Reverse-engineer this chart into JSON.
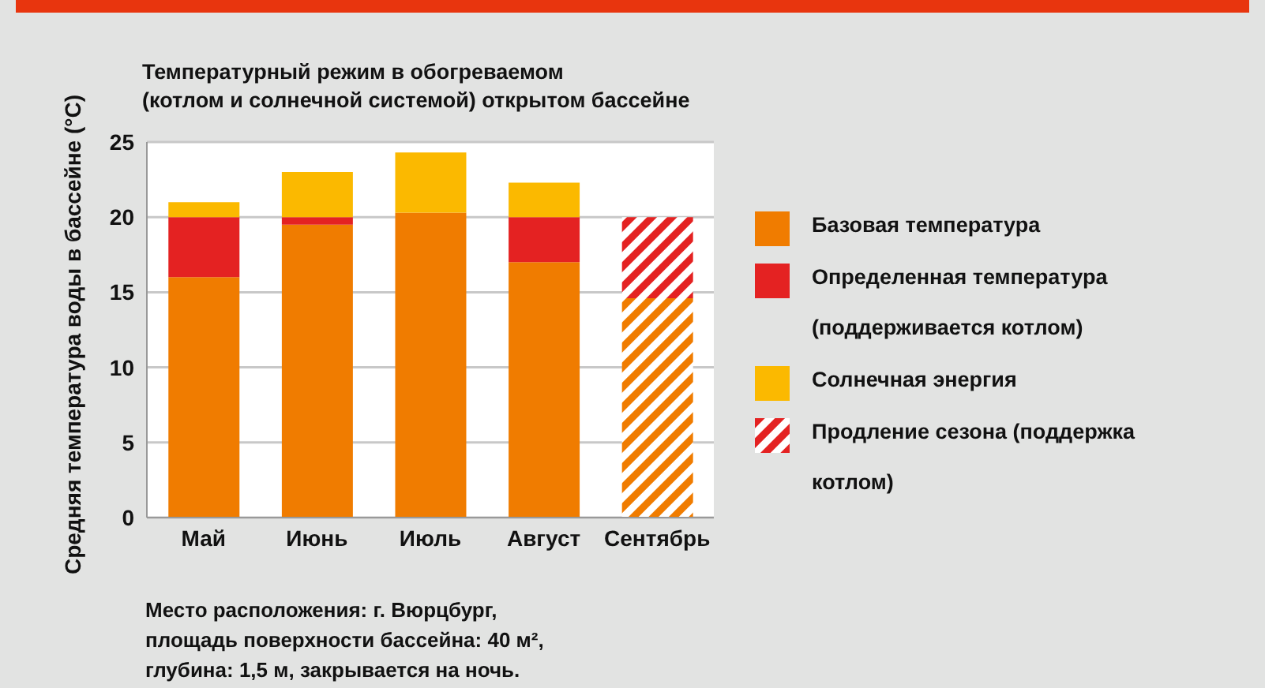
{
  "chart_data": {
    "type": "bar",
    "title": "Температурный режим в обогреваемом\n(котлом и солнечной системой) открытом бассейне",
    "ylabel": "Средняя температура воды в бассейне (°C)",
    "categories": [
      "Май",
      "Июнь",
      "Июль",
      "Август",
      "Сентябрь"
    ],
    "stacked": true,
    "ylim": [
      0,
      25
    ],
    "yticks": [
      0,
      5,
      10,
      15,
      20,
      25
    ],
    "grid": "y",
    "legend": "right",
    "series": [
      {
        "name": "Базовая температура",
        "color": "#f07c00",
        "values": [
          16,
          19.5,
          20.3,
          17,
          null
        ]
      },
      {
        "name": "Определенная температура (поддерживается котлом)",
        "color": "#e42222",
        "values": [
          4,
          0.5,
          null,
          3,
          null
        ]
      },
      {
        "name": "Солнечная энергия",
        "color": "#fbb900",
        "values": [
          1,
          3,
          4,
          2.3,
          null
        ]
      },
      {
        "color": "#f07c00",
        "values": [
          null,
          null,
          null,
          null,
          14.6
        ]
      },
      {
        "name": "Продление сезона (поддержка котлом)",
        "color": "#e42222",
        "values": [
          null,
          null,
          null,
          null,
          5.4
        ]
      }
    ],
    "annotations": [
      "Место расположения: г. Вюрцбург, площадь поверхности бассейна: 40 м², глубина: 1,5 м, закрывается на ночь."
    ]
  }
}
